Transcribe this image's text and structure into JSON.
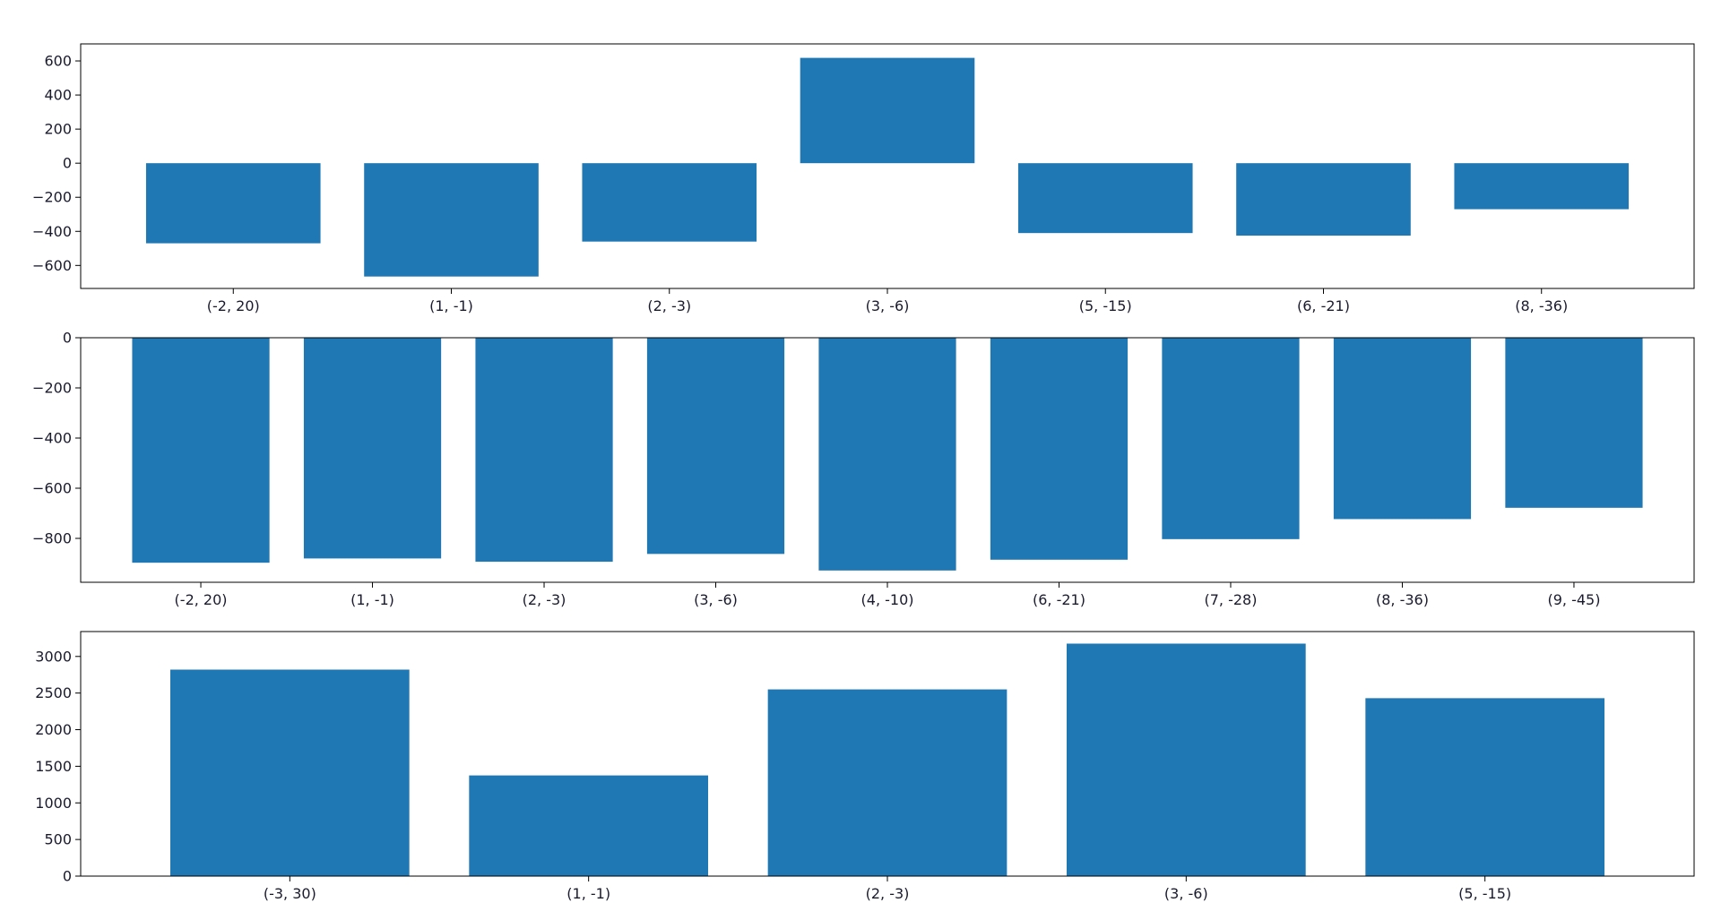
{
  "colors": {
    "bar": "#1f77b4",
    "axis": "#000000",
    "text": "#1a1a2e",
    "background": "#ffffff"
  },
  "chart_data": [
    {
      "type": "bar",
      "categories": [
        "(-2, 20)",
        "(1, -1)",
        "(2, -3)",
        "(3, -6)",
        "(5, -15)",
        "(6, -21)",
        "(8, -36)"
      ],
      "values": [
        -470,
        -665,
        -460,
        618,
        -410,
        -425,
        -270
      ],
      "ylim": [
        -735,
        700
      ],
      "yticks": [
        -600,
        -400,
        -200,
        0,
        200,
        400,
        600
      ],
      "title": "",
      "xlabel": "",
      "ylabel": "",
      "grid": false,
      "legend": "none"
    },
    {
      "type": "bar",
      "categories": [
        "(-2, 20)",
        "(1, -1)",
        "(2, -3)",
        "(3, -6)",
        "(4, -10)",
        "(6, -21)",
        "(7, -28)",
        "(8, -36)",
        "(9, -45)"
      ],
      "values": [
        -897,
        -880,
        -893,
        -862,
        -928,
        -885,
        -803,
        -723,
        -678
      ],
      "ylim": [
        -975,
        0
      ],
      "yticks": [
        -800,
        -600,
        -400,
        -200,
        0
      ],
      "title": "",
      "xlabel": "",
      "ylabel": "",
      "grid": false,
      "legend": "none"
    },
    {
      "type": "bar",
      "categories": [
        "(-3, 30)",
        "(1, -1)",
        "(2, -3)",
        "(3, -6)",
        "(5, -15)"
      ],
      "values": [
        2820,
        1375,
        2550,
        3175,
        2430
      ],
      "ylim": [
        0,
        3340
      ],
      "yticks": [
        0,
        500,
        1000,
        1500,
        2000,
        2500,
        3000
      ],
      "title": "",
      "xlabel": "",
      "ylabel": "",
      "grid": false,
      "legend": "none"
    }
  ]
}
